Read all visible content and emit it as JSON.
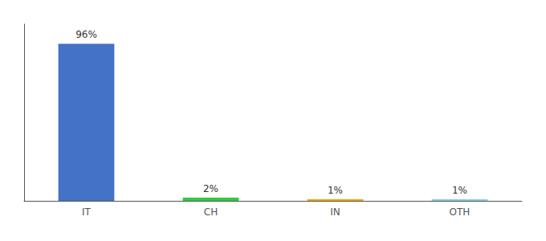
{
  "chart_data": {
    "type": "bar",
    "categories": [
      "IT",
      "CH",
      "IN",
      "OTH"
    ],
    "values": [
      96,
      2,
      1,
      1
    ],
    "value_labels": [
      "96%",
      "2%",
      "1%",
      "1%"
    ],
    "data_labels": true,
    "colors": [
      "#4472C4",
      "#2ECC40",
      "#FFA500",
      "#87CEEB"
    ],
    "ylim": [
      0,
      108
    ],
    "grid": false,
    "tick_labels": "x"
  }
}
